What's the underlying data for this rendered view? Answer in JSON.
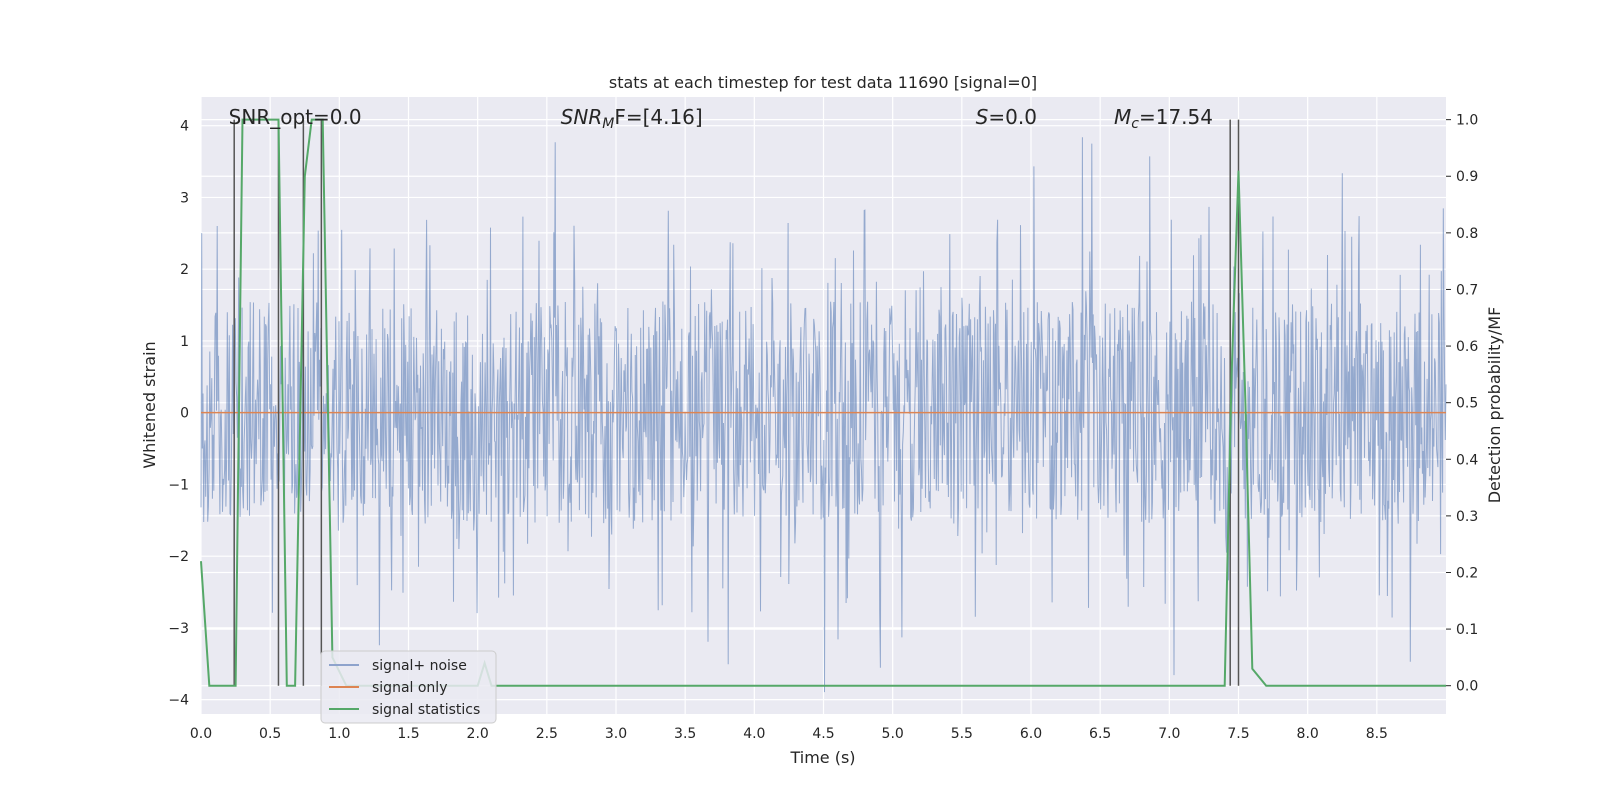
{
  "chart_data": {
    "type": "line",
    "title": "stats at each timestep for test data 11690 [signal=0]",
    "xlabel": "Time (s)",
    "ylabel": "Whitened strain",
    "y2label": "Detection probability/MF",
    "xlim": [
      0.0,
      9.0
    ],
    "ylim": [
      -4.2,
      4.4
    ],
    "y2lim": [
      -0.05,
      1.04
    ],
    "xticks": [
      "0.0",
      "0.5",
      "1.0",
      "1.5",
      "2.0",
      "2.5",
      "3.0",
      "3.5",
      "4.0",
      "4.5",
      "5.0",
      "5.5",
      "6.0",
      "6.5",
      "7.0",
      "7.5",
      "8.0",
      "8.5"
    ],
    "yticks": [
      "4",
      "3",
      "2",
      "1",
      "0",
      "−1",
      "−2",
      "−3",
      "−4"
    ],
    "y2ticks": [
      "1.0",
      "0.9",
      "0.8",
      "0.7",
      "0.6",
      "0.5",
      "0.4",
      "0.3",
      "0.2",
      "0.1",
      "0.0"
    ],
    "grid": true,
    "legend_position": "lower-left",
    "annotations": [
      {
        "text": "SNR_opt=0.0",
        "x": 0.2
      },
      {
        "text": "SNR_MF=[4.16]",
        "x": 2.6
      },
      {
        "text": "S=0.0",
        "x": 5.6
      },
      {
        "text": "M_c=17.54",
        "x": 6.6
      }
    ],
    "series": [
      {
        "name": "signal+ noise",
        "color": "#4c72b0",
        "axis": "left",
        "note": "whitened strain noise, roughly ±1.5 with spikes to ±4"
      },
      {
        "name": "signal only",
        "color": "#dd8452",
        "axis": "left",
        "constant": 0.0
      },
      {
        "name": "signal statistics",
        "color": "#55a868",
        "axis": "right",
        "x": [
          0.0,
          0.06,
          0.25,
          0.3,
          0.56,
          0.62,
          0.68,
          0.75,
          0.8,
          0.88,
          0.95,
          1.05,
          1.2,
          1.5,
          2.0,
          2.05,
          2.1,
          3.0,
          4.0,
          5.0,
          6.0,
          7.0,
          7.4,
          7.45,
          7.5,
          7.55,
          7.6,
          7.7,
          8.0,
          8.5,
          9.0
        ],
        "y": [
          0.22,
          0.0,
          0.0,
          1.0,
          1.0,
          0.0,
          0.0,
          0.9,
          1.0,
          1.0,
          0.05,
          0.0,
          0.0,
          0.0,
          0.0,
          0.04,
          0.0,
          0.0,
          0.0,
          0.0,
          0.0,
          0.0,
          0.0,
          0.55,
          0.91,
          0.5,
          0.03,
          0.0,
          0.0,
          0.0,
          0.0
        ]
      },
      {
        "name": "vertical markers",
        "color": "#555555",
        "legend": false,
        "x": [
          0.24,
          0.56,
          0.74,
          0.87,
          7.44,
          7.5
        ]
      }
    ]
  }
}
